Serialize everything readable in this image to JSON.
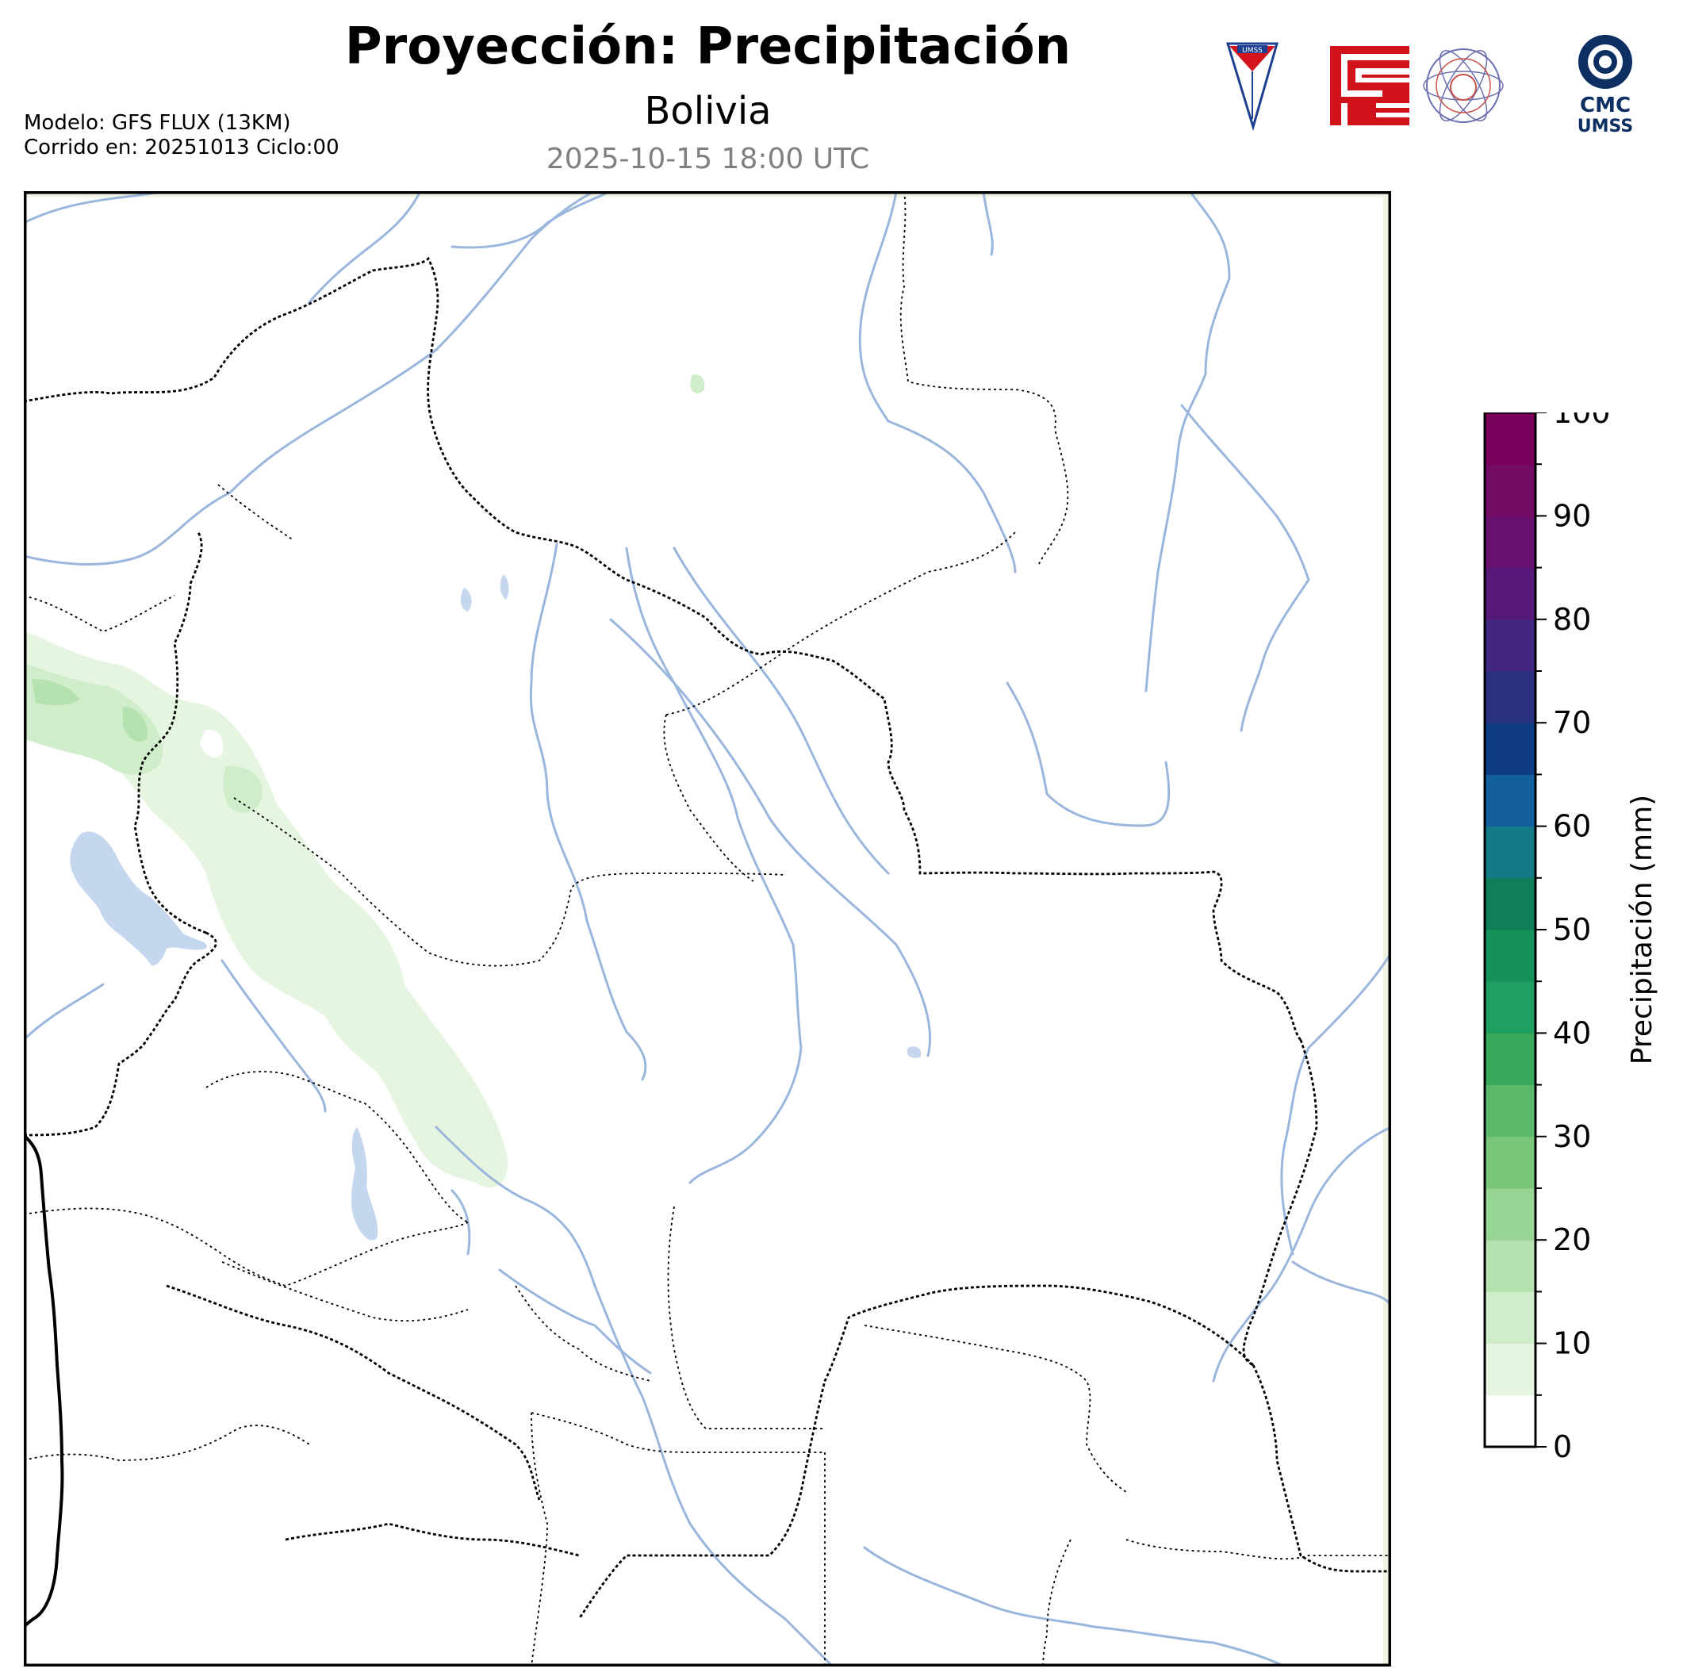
{
  "header": {
    "title": "Proyección: Precipitación",
    "subtitle": "Bolivia",
    "datetime": "2025-10-15 18:00 UTC",
    "model_line": "Modelo: GFS FLUX (13KM)",
    "run_line": "Corrido en: 20251013 Ciclo:00"
  },
  "logos": {
    "umss_text": "UMSS",
    "cmc_line1": "CMC",
    "cmc_line2": "UMSS"
  },
  "colorbar": {
    "label": "Precipitación (mm)",
    "min": 0,
    "max": 100,
    "step": 5,
    "ticks": [
      "0",
      "10",
      "20",
      "30",
      "40",
      "50",
      "60",
      "70",
      "80",
      "90",
      "100"
    ],
    "colors": [
      "#ffffff",
      "#e5f5e0",
      "#d0edca",
      "#b5e1b0",
      "#98d494",
      "#7ac67a",
      "#5db96a",
      "#39a85b",
      "#1fa060",
      "#16915a",
      "#0f7f58",
      "#157a86",
      "#135f9b",
      "#0d3c82",
      "#2a3180",
      "#422680",
      "#56197a",
      "#67106d",
      "#730a63",
      "#7a015b"
    ]
  },
  "map": {
    "region": "Bolivia",
    "colors": {
      "rivers": "#9ab6dc",
      "lakes": "#c5d7ee",
      "borders": "#000000",
      "precip_light": "#e5f5e0",
      "precip_mid": "#d0edca",
      "precip_high": "#b5e1b0"
    }
  }
}
